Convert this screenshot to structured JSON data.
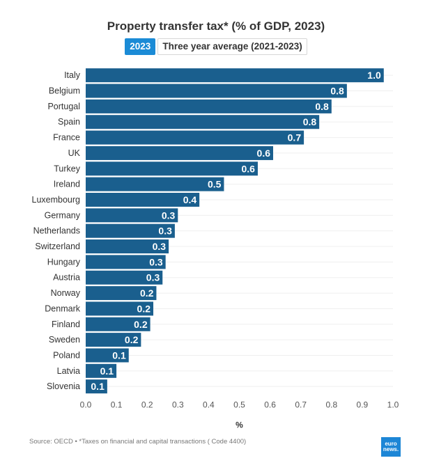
{
  "title": "Property transfer tax* (% of GDP, 2023)",
  "toggle": {
    "options": [
      "2023",
      "Three year average (2021-2023)"
    ],
    "selected": "2023"
  },
  "source": "Source: OECD • *Taxes on financial and capital transactions ( Code 4400)",
  "logo": {
    "line1": "euro",
    "line2": "news."
  },
  "colors": {
    "bar": "#1a5f8e",
    "active_toggle": "#1b8bd6",
    "logo": "#1d86d6"
  },
  "chart_data": {
    "type": "bar",
    "orientation": "horizontal",
    "title": "Property transfer tax* (% of GDP, 2023)",
    "xlabel": "%",
    "ylabel": "",
    "xlim": [
      0,
      1.0
    ],
    "x_ticks": [
      "0.0",
      "0.1",
      "0.2",
      "0.3",
      "0.4",
      "0.5",
      "0.6",
      "0.7",
      "0.8",
      "0.9",
      "1.0"
    ],
    "grid": true,
    "categories": [
      "Italy",
      "Belgium",
      "Portugal",
      "Spain",
      "France",
      "UK",
      "Turkey",
      "Ireland",
      "Luxembourg",
      "Germany",
      "Netherlands",
      "Switzerland",
      "Hungary",
      "Austria",
      "Norway",
      "Denmark",
      "Finland",
      "Sweden",
      "Poland",
      "Latvia",
      "Slovenia"
    ],
    "values": [
      0.97,
      0.85,
      0.8,
      0.76,
      0.71,
      0.61,
      0.56,
      0.45,
      0.37,
      0.3,
      0.29,
      0.27,
      0.26,
      0.25,
      0.23,
      0.22,
      0.21,
      0.18,
      0.14,
      0.1,
      0.07
    ],
    "labels": [
      "1.0",
      "0.8",
      "0.8",
      "0.8",
      "0.7",
      "0.6",
      "0.6",
      "0.5",
      "0.4",
      "0.3",
      "0.3",
      "0.3",
      "0.3",
      "0.3",
      "0.2",
      "0.2",
      "0.2",
      "0.2",
      "0.1",
      "0.1",
      "0.1"
    ]
  }
}
